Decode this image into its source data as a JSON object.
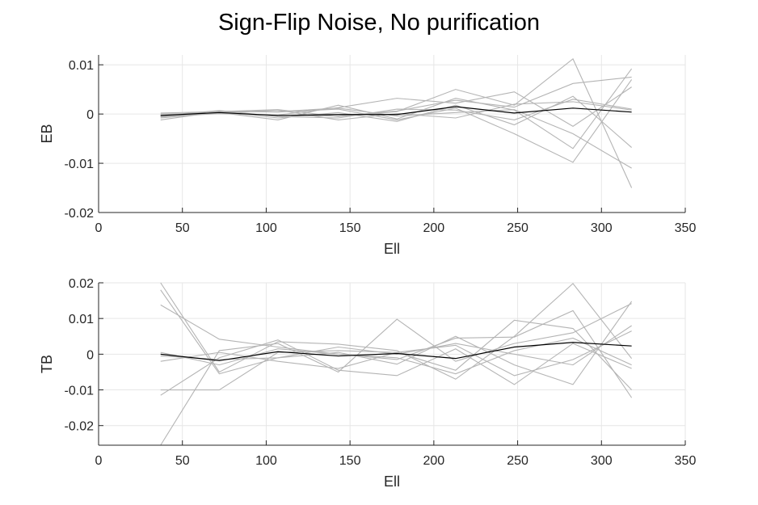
{
  "title": "Sign-Flip Noise, No purification",
  "colors": {
    "realization": "#b4b4b4",
    "mean": "#000000",
    "grid": "#e6e6e6",
    "axis": "#262626"
  },
  "chart_data": [
    {
      "type": "line",
      "xlabel": "Ell",
      "ylabel": "EB",
      "xlim": [
        0,
        350
      ],
      "ylim": [
        -0.02,
        0.012
      ],
      "xticks": [
        0,
        50,
        100,
        150,
        200,
        250,
        300,
        350
      ],
      "xtick_labels": [
        "0",
        "50",
        "100",
        "150",
        "200",
        "250",
        "300",
        "350"
      ],
      "yticks": [
        -0.02,
        -0.01,
        0,
        0.01
      ],
      "ytick_labels": [
        "-0.02",
        "-0.01",
        "0",
        "0.01"
      ],
      "grid": true,
      "x": [
        37,
        72,
        107,
        143,
        178,
        213,
        248,
        283,
        318
      ],
      "realizations": [
        [
          -0.0008,
          0.0003,
          -0.0012,
          0.0018,
          -0.001,
          0.0032,
          0.0008,
          -0.007,
          0.0092
        ],
        [
          0.0002,
          0.0005,
          0.0009,
          -0.0005,
          0.0005,
          0.005,
          0.0018,
          0.0112,
          -0.015
        ],
        [
          -0.0004,
          0.0006,
          0.0004,
          0.001,
          -0.0012,
          0.0012,
          -0.004,
          -0.0098,
          0.007
        ],
        [
          -0.0006,
          0.0001,
          -0.0002,
          0.0013,
          0.0032,
          0.0022,
          0.0045,
          -0.0025,
          0.0055
        ],
        [
          -0.0012,
          0.0005,
          -0.0008,
          0.0003,
          -0.0015,
          0.0018,
          -0.0022,
          0.0036,
          -0.0068
        ],
        [
          0.0,
          0.0002,
          0.0008,
          -0.0012,
          0.0001,
          -0.0008,
          0.002,
          0.0025,
          0.0008
        ],
        [
          -0.0003,
          0.0007,
          -0.0005,
          -0.0008,
          0.001,
          0.0008,
          -0.0012,
          0.003,
          0.001
        ],
        [
          -0.0005,
          0.0004,
          0.0005,
          0.0012,
          -0.0004,
          0.0003,
          0.0009,
          -0.004,
          -0.011
        ],
        [
          -0.0002,
          0.0001,
          -0.0003,
          -0.0004,
          0.0006,
          0.0028,
          0.0014,
          0.0062,
          0.0075
        ]
      ],
      "mean": [
        -0.0003,
        0.0003,
        -0.0003,
        -0.0001,
        -0.0001,
        0.0015,
        0.0002,
        0.0012,
        0.0004
      ]
    },
    {
      "type": "line",
      "xlabel": "Ell",
      "ylabel": "TB",
      "xlim": [
        0,
        350
      ],
      "ylim": [
        -0.0255,
        0.02
      ],
      "xticks": [
        0,
        50,
        100,
        150,
        200,
        250,
        300,
        350
      ],
      "xtick_labels": [
        "0",
        "50",
        "100",
        "150",
        "200",
        "250",
        "300",
        "350"
      ],
      "yticks": [
        -0.02,
        -0.01,
        0,
        0.01,
        0.02
      ],
      "ytick_labels": [
        "-0.02",
        "-0.01",
        "0",
        "0.01",
        "0.02"
      ],
      "grid": true,
      "x": [
        37,
        72,
        107,
        143,
        178,
        213,
        248,
        283,
        318
      ],
      "realizations": [
        [
          0.02,
          -0.005,
          0.0035,
          0.0028,
          0.001,
          -0.007,
          0.005,
          0.0198,
          -0.0012
        ],
        [
          -0.0255,
          0.001,
          0.003,
          -0.005,
          0.0098,
          -0.002,
          0.003,
          0.006,
          0.0142
        ],
        [
          0.0138,
          0.0042,
          0.002,
          0.0,
          -0.0015,
          0.0045,
          0.0048,
          0.0122,
          -0.0122
        ],
        [
          -0.0115,
          -0.001,
          0.004,
          -0.0045,
          -0.006,
          0.0015,
          -0.0085,
          0.003,
          -0.004
        ],
        [
          0.018,
          -0.0055,
          -0.001,
          0.0005,
          -0.0028,
          0.005,
          -0.003,
          -0.0085,
          0.0148
        ],
        [
          -0.01,
          -0.01,
          0.0005,
          0.001,
          0.0005,
          -0.0045,
          0.0095,
          0.0072,
          -0.01
        ],
        [
          -0.002,
          0.0005,
          -0.002,
          -0.004,
          0.0005,
          0.0025,
          -0.006,
          -0.0015,
          0.0065
        ],
        [
          0.0005,
          -0.003,
          0.0015,
          0.0,
          -0.001,
          -0.0055,
          0.001,
          0.0045,
          -0.003
        ],
        [
          -0.0005,
          -0.0015,
          -0.001,
          0.002,
          0.0,
          0.003,
          0.0,
          -0.003,
          0.008
        ]
      ],
      "mean": [
        0.0,
        -0.0018,
        0.0007,
        -0.0005,
        0.0002,
        -0.0012,
        0.002,
        0.0033,
        0.0023
      ]
    }
  ]
}
